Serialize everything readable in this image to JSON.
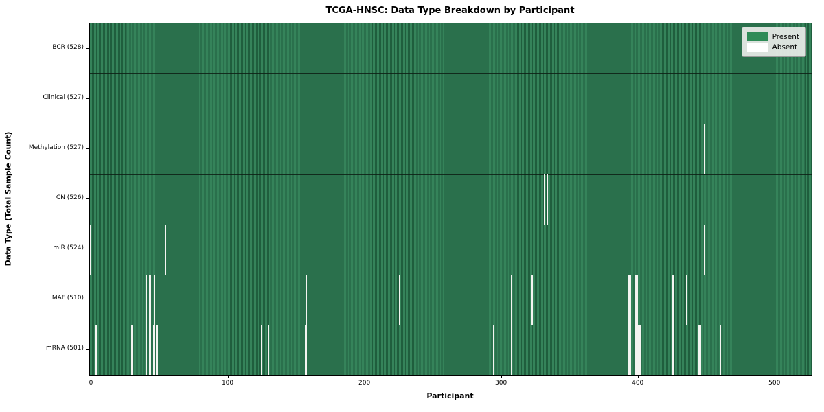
{
  "title": "TCGA-HNSC: Data Type Breakdown by Participant",
  "chart_data": {
    "type": "heatmap",
    "title": "TCGA-HNSC: Data Type Breakdown by Participant",
    "xlabel": "Participant",
    "ylabel": "Data Type (Total Sample Count)",
    "x_ticks": [
      0,
      100,
      200,
      300,
      400,
      500
    ],
    "x_range": [
      0,
      528
    ],
    "n_participants": 528,
    "grid": false,
    "legend_position": "upper right",
    "legend": [
      {
        "label": "Present",
        "color": "#2e8b57"
      },
      {
        "label": "Absent",
        "color": "#ffffff"
      }
    ],
    "rows": [
      {
        "label": "BCR (528)",
        "name": "BCR",
        "count": 528,
        "absent": []
      },
      {
        "label": "Clinical (527)",
        "name": "Clinical",
        "count": 527,
        "absent": [
          247
        ]
      },
      {
        "label": "Methylation (527)",
        "name": "Methylation",
        "count": 527,
        "absent": [
          449
        ]
      },
      {
        "label": "CN (526)",
        "name": "CN",
        "count": 526,
        "absent": [
          332,
          334
        ]
      },
      {
        "label": "miR (524)",
        "name": "miR",
        "count": 524,
        "absent": [
          0,
          55,
          69,
          449
        ]
      },
      {
        "label": "MAF (510)",
        "name": "MAF",
        "count": 510,
        "absent": [
          41,
          42,
          43,
          44,
          45,
          47,
          50,
          58,
          158,
          226,
          308,
          323,
          394,
          395,
          399,
          400,
          426,
          436
        ]
      },
      {
        "label": "mRNA (501)",
        "name": "mRNA",
        "count": 501,
        "absent": [
          4,
          30,
          41,
          42,
          43,
          44,
          45,
          46,
          47,
          48,
          49,
          125,
          130,
          157,
          158,
          295,
          308,
          394,
          395,
          399,
          400,
          401,
          402,
          426,
          445,
          446,
          461
        ]
      }
    ],
    "colors": {
      "present_stripe_light": "#35835a",
      "present_stripe_dark": "#1f5e3d",
      "absent": "#f4f4f1",
      "row_divider": "#0d1f14",
      "frame": "#000000",
      "legend_bg": "#eaede9"
    }
  }
}
